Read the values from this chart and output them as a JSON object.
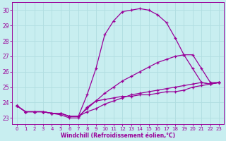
{
  "xlabel": "Windchill (Refroidissement éolien,°C)",
  "ylabel": "",
  "bg_color": "#c8eef0",
  "grid_color": "#b0dde0",
  "line_color": "#990099",
  "xlim": [
    -0.5,
    23.5
  ],
  "ylim": [
    22.6,
    30.5
  ],
  "xticks": [
    0,
    1,
    2,
    3,
    4,
    5,
    6,
    7,
    8,
    9,
    10,
    11,
    12,
    13,
    14,
    15,
    16,
    17,
    18,
    19,
    20,
    21,
    22,
    23
  ],
  "yticks": [
    23,
    24,
    25,
    26,
    27,
    28,
    29,
    30
  ],
  "series": [
    {
      "x": [
        0,
        1,
        2,
        3,
        4,
        5,
        6,
        7,
        8,
        9,
        10,
        11,
        12,
        13,
        14,
        15,
        16,
        17,
        18,
        19,
        20,
        21,
        22,
        23
      ],
      "y": [
        23.8,
        23.4,
        23.4,
        23.4,
        23.3,
        23.3,
        23.1,
        23.1,
        24.5,
        26.2,
        28.4,
        29.3,
        29.9,
        30.0,
        30.1,
        30.0,
        29.7,
        29.2,
        28.2,
        27.1,
        26.2,
        25.3,
        25.2,
        25.3
      ]
    },
    {
      "x": [
        0,
        1,
        2,
        3,
        4,
        5,
        6,
        7,
        8,
        9,
        10,
        11,
        12,
        13,
        14,
        15,
        16,
        17,
        18,
        19,
        20,
        21,
        22,
        23
      ],
      "y": [
        23.8,
        23.4,
        23.4,
        23.4,
        23.3,
        23.3,
        23.1,
        23.1,
        23.6,
        24.1,
        24.6,
        25.0,
        25.4,
        25.7,
        26.0,
        26.3,
        26.6,
        26.8,
        27.0,
        27.1,
        27.1,
        26.2,
        25.3,
        25.3
      ]
    },
    {
      "x": [
        0,
        1,
        2,
        3,
        4,
        5,
        6,
        7,
        8,
        9,
        10,
        11,
        12,
        13,
        14,
        15,
        16,
        17,
        18,
        19,
        20,
        21,
        22,
        23
      ],
      "y": [
        23.8,
        23.4,
        23.4,
        23.4,
        23.3,
        23.3,
        23.1,
        23.1,
        23.4,
        23.6,
        23.9,
        24.1,
        24.3,
        24.5,
        24.6,
        24.7,
        24.8,
        24.9,
        25.0,
        25.1,
        25.2,
        25.3,
        25.2,
        25.3
      ]
    },
    {
      "x": [
        0,
        1,
        2,
        3,
        4,
        5,
        6,
        7,
        8,
        9,
        10,
        11,
        12,
        13,
        14,
        15,
        16,
        17,
        18,
        19,
        20,
        21,
        22,
        23
      ],
      "y": [
        23.8,
        23.4,
        23.4,
        23.4,
        23.3,
        23.2,
        23.0,
        23.0,
        23.7,
        24.1,
        24.2,
        24.3,
        24.4,
        24.4,
        24.5,
        24.5,
        24.6,
        24.7,
        24.7,
        24.8,
        25.0,
        25.1,
        25.2,
        25.3
      ]
    }
  ]
}
